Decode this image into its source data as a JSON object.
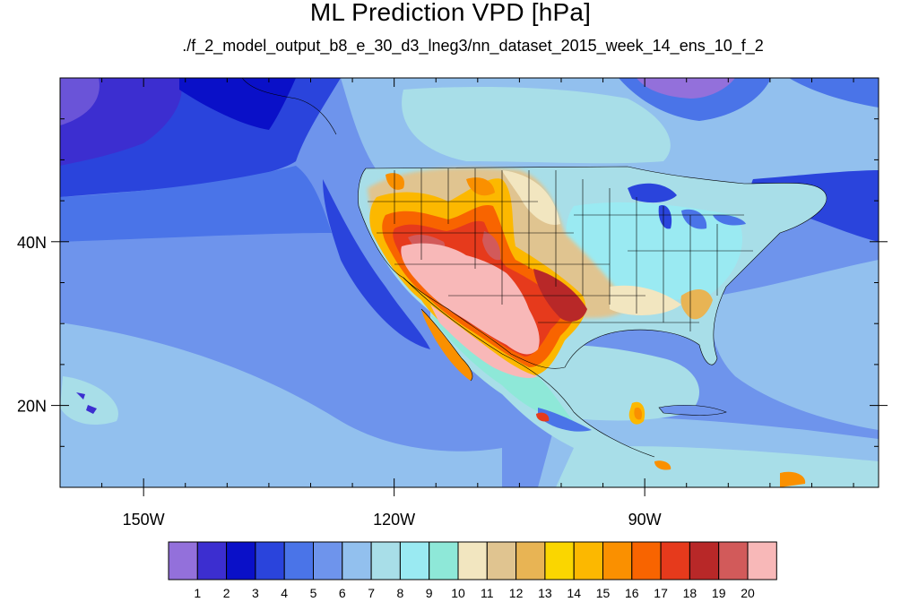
{
  "title": "ML Prediction VPD [hPa]",
  "subtitle": "./f_2_model_output_b8_e_30_d3_lneg3/nn_dataset_2015_week_14_ens_10_f_2",
  "map": {
    "lon_range": [
      -160,
      -62
    ],
    "lat_range": [
      10,
      60
    ],
    "lon_ticks": [
      {
        "lon": -150,
        "label": "150W"
      },
      {
        "lon": -120,
        "label": "120W"
      },
      {
        "lon": -90,
        "label": "90W"
      }
    ],
    "lat_ticks": [
      {
        "lat": 40,
        "label": "40N"
      },
      {
        "lat": 20,
        "label": "20N"
      }
    ]
  },
  "colorbar": {
    "colors": [
      "#9370db",
      "#3c2ed0",
      "#0a10c8",
      "#2a44dc",
      "#4a74e8",
      "#6e94ec",
      "#92c0ee",
      "#a8dee8",
      "#9aeaf2",
      "#8ee8d8",
      "#f2e6c0",
      "#e0c490",
      "#e8b454",
      "#fad600",
      "#fcb800",
      "#fa9000",
      "#f86400",
      "#e63a1c",
      "#b82828",
      "#d25a5a",
      "#f8b8b8"
    ],
    "labels": [
      "1",
      "2",
      "3",
      "4",
      "5",
      "6",
      "7",
      "8",
      "9",
      "10",
      "11",
      "12",
      "13",
      "14",
      "15",
      "16",
      "17",
      "18",
      "19",
      "20"
    ]
  }
}
